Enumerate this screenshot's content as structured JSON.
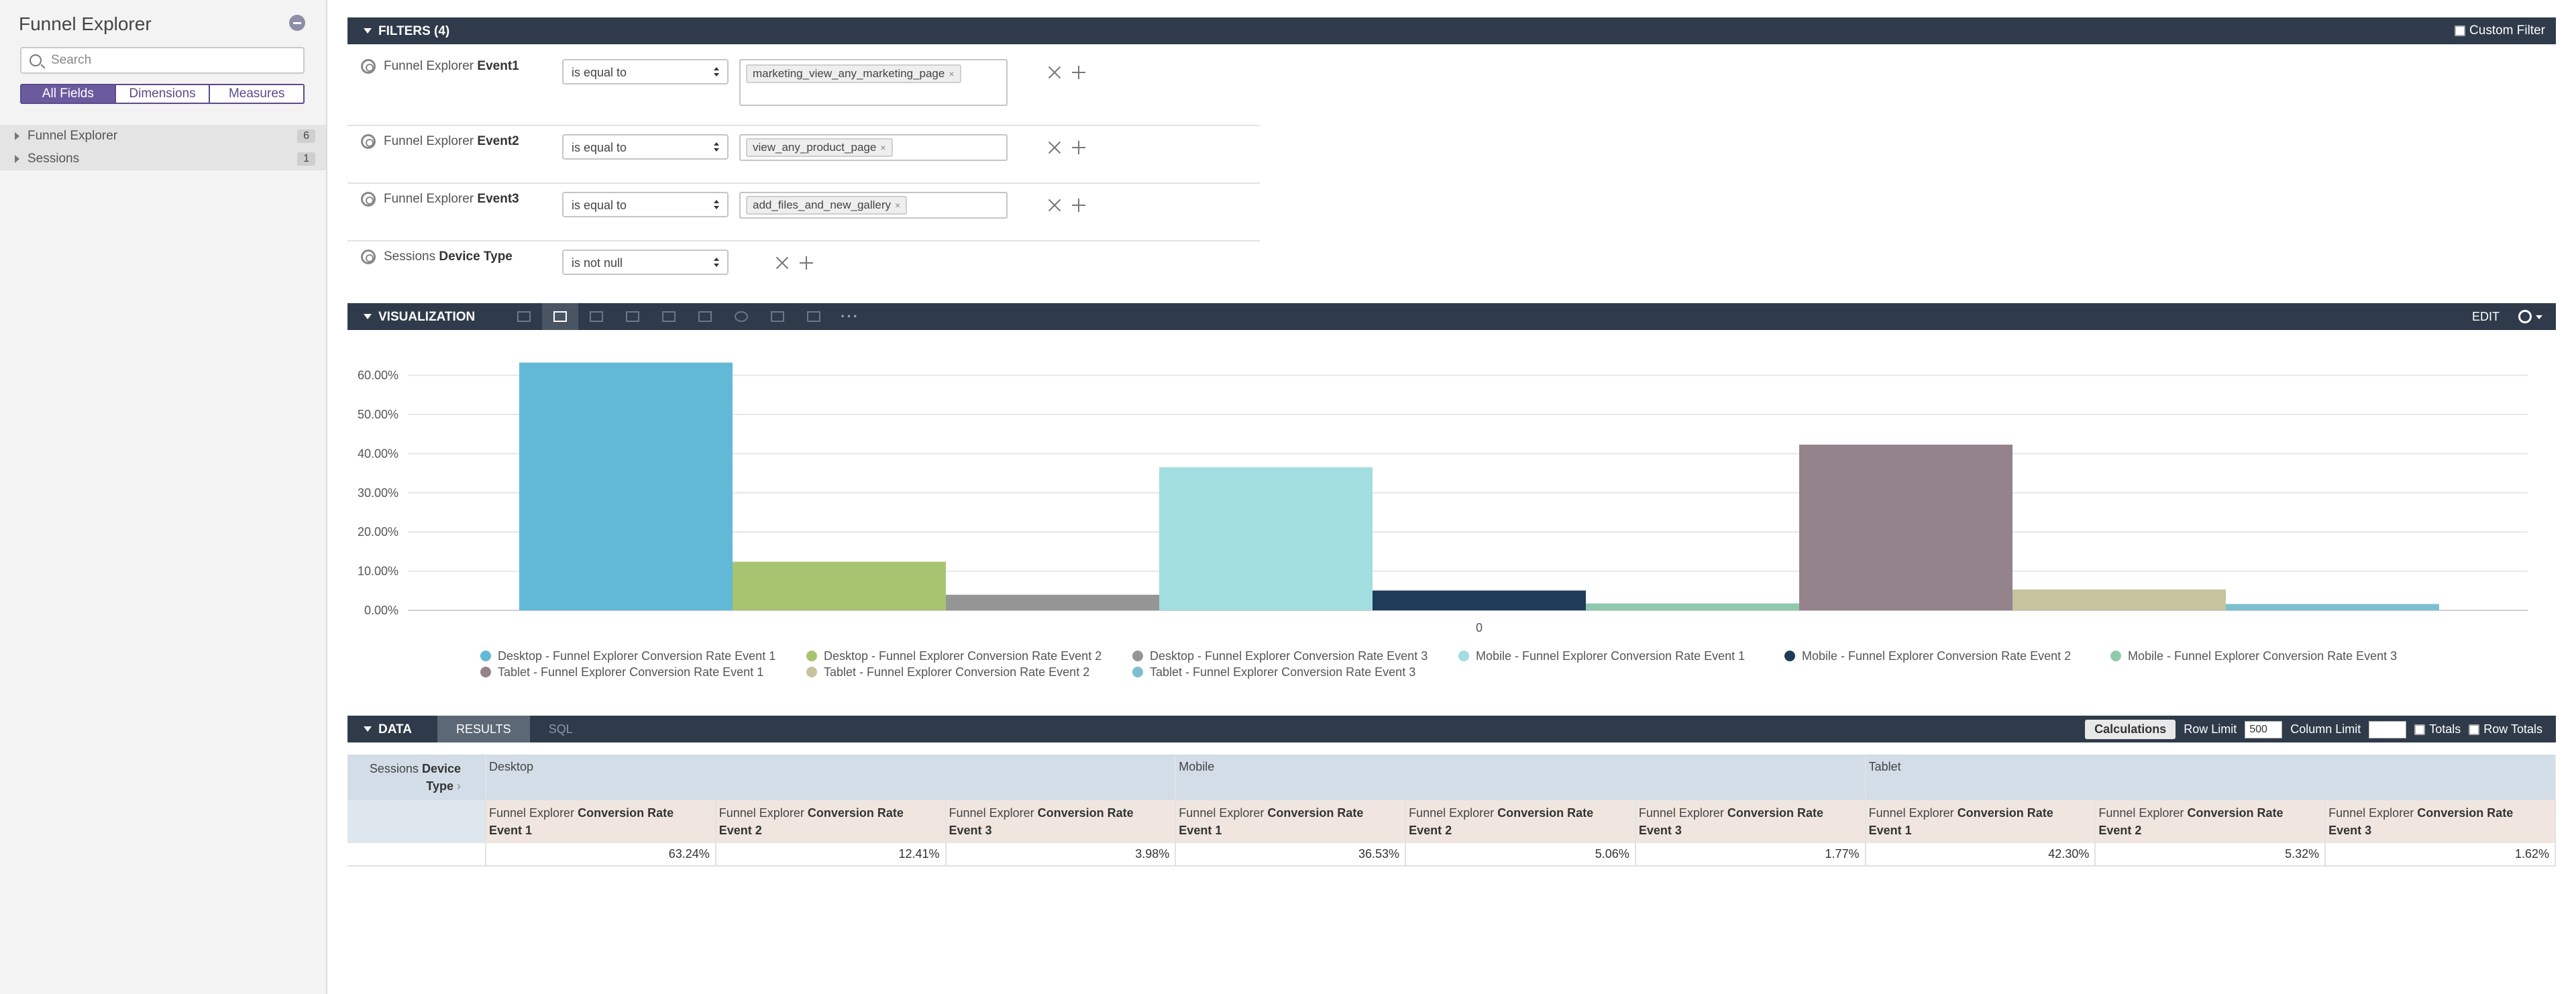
{
  "sidebar": {
    "title": "Funnel Explorer",
    "search_placeholder": "Search",
    "tabs": [
      "All Fields",
      "Dimensions",
      "Measures"
    ],
    "views": [
      {
        "label": "Funnel Explorer",
        "count": "6"
      },
      {
        "label": "Sessions",
        "count": "1"
      }
    ]
  },
  "filters": {
    "title": "FILTERS (4)",
    "custom_filter": "Custom Filter",
    "rows": [
      {
        "view": "Funnel Explorer",
        "field": "Event1",
        "operator": "is equal to",
        "value": "marketing_view_any_marketing_page"
      },
      {
        "view": "Funnel Explorer",
        "field": "Event2",
        "operator": "is equal to",
        "value": "view_any_product_page"
      },
      {
        "view": "Funnel Explorer",
        "field": "Event3",
        "operator": "is equal to",
        "value": "add_files_and_new_gallery"
      },
      {
        "view": "Sessions",
        "field": "Device Type",
        "operator": "is not null",
        "value": ""
      }
    ],
    "remove_glyph": "×"
  },
  "visualization": {
    "title": "VISUALIZATION",
    "edit": "EDIT",
    "more": "···",
    "type_icons": [
      "table-icon",
      "column-chart-icon",
      "bar-chart-icon",
      "scatter-icon",
      "line-chart-icon",
      "area-chart-icon",
      "pie-chart-icon",
      "map-icon",
      "single-value-icon"
    ]
  },
  "chart_data": {
    "type": "bar",
    "categories": [
      "0"
    ],
    "y_ticks": [
      "60.00%",
      "50.00%",
      "40.00%",
      "30.00%",
      "20.00%",
      "10.00%",
      "0.00%"
    ],
    "ylim": [
      0,
      0.63
    ],
    "grid": true,
    "legend_position": "bottom",
    "series": [
      {
        "name": "Desktop - Funnel Explorer Conversion Rate Event 1",
        "values": [
          0.6324
        ],
        "color": "#62b9d7"
      },
      {
        "name": "Desktop - Funnel Explorer Conversion Rate Event 2",
        "values": [
          0.1241
        ],
        "color": "#a8c470"
      },
      {
        "name": "Desktop - Funnel Explorer Conversion Rate Event 3",
        "values": [
          0.0398
        ],
        "color": "#959595"
      },
      {
        "name": "Mobile - Funnel Explorer Conversion Rate Event 1",
        "values": [
          0.3653
        ],
        "color": "#a2dde0"
      },
      {
        "name": "Mobile - Funnel Explorer Conversion Rate Event 2",
        "values": [
          0.0506
        ],
        "color": "#1f3b5a"
      },
      {
        "name": "Mobile - Funnel Explorer Conversion Rate Event 3",
        "values": [
          0.0177
        ],
        "color": "#8fc9ad"
      },
      {
        "name": "Tablet - Funnel Explorer Conversion Rate Event 1",
        "values": [
          0.423
        ],
        "color": "#94838b"
      },
      {
        "name": "Tablet - Funnel Explorer Conversion Rate Event 2",
        "values": [
          0.0532
        ],
        "color": "#c6c39e"
      },
      {
        "name": "Tablet - Funnel Explorer Conversion Rate Event 3",
        "values": [
          0.0162
        ],
        "color": "#7dbfd1"
      }
    ]
  },
  "data": {
    "title": "DATA",
    "tabs": [
      "RESULTS",
      "SQL"
    ],
    "calculations": "Calculations",
    "row_limit_label": "Row Limit",
    "row_limit_value": "500",
    "column_limit_label": "Column Limit",
    "totals_label": "Totals",
    "row_totals_label": "Row Totals",
    "pivot_dim": {
      "view": "Sessions",
      "field": "Device",
      "rest": "Type"
    },
    "pivots": [
      "Desktop",
      "Mobile",
      "Tablet"
    ],
    "measures": [
      {
        "view": "Funnel Explorer",
        "field": "Conversion Rate",
        "suffix": "Event 1"
      },
      {
        "view": "Funnel Explorer",
        "field": "Conversion Rate",
        "suffix": "Event 2"
      },
      {
        "view": "Funnel Explorer",
        "field": "Conversion Rate",
        "suffix": "Event 3"
      }
    ],
    "values": [
      "63.24%",
      "12.41%",
      "3.98%",
      "36.53%",
      "5.06%",
      "1.77%",
      "42.30%",
      "5.32%",
      "1.62%"
    ]
  }
}
